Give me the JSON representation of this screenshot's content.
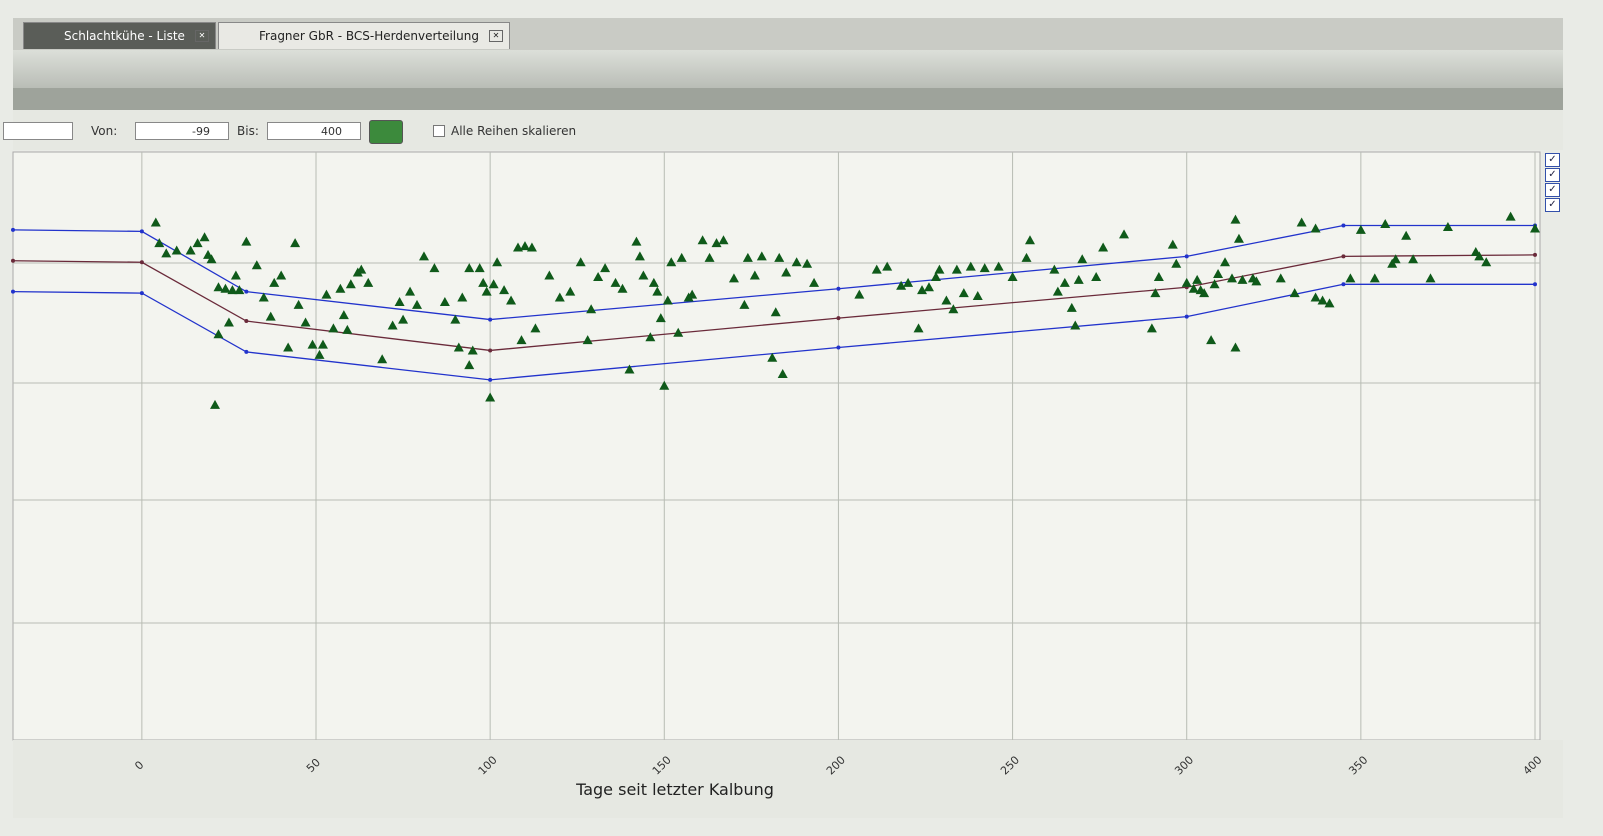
{
  "tabs": [
    {
      "label": "Schlachtkühe - Liste"
    },
    {
      "label": "Fragner GbR - BCS-Herdenverteilung"
    }
  ],
  "toolbar": {
    "from_label": "Von:",
    "from_value": -99,
    "to_label": "Bis:",
    "to_value": 400,
    "checkbox_label": "Alle Reihen skalieren"
  },
  "chart_data": {
    "type": "scatter",
    "xlabel": "Tage seit letzter Kalbung",
    "xlim": [
      -37,
      400
    ],
    "xticks": [
      0,
      50,
      100,
      150,
      200,
      250,
      300,
      350,
      400
    ],
    "ylim": [
      1,
      5
    ],
    "grid": true,
    "series": [
      {
        "type": "line",
        "color": "#2233cc",
        "x": [
          -37,
          0,
          30,
          100,
          200,
          300,
          345,
          400
        ],
        "values": [
          4.47,
          4.46,
          4.05,
          3.86,
          4.07,
          4.29,
          4.5,
          4.5
        ]
      },
      {
        "type": "line",
        "color": "#6a2a3a",
        "x": [
          -37,
          0,
          30,
          100,
          200,
          300,
          345,
          400
        ],
        "values": [
          4.26,
          4.25,
          3.85,
          3.65,
          3.87,
          4.08,
          4.29,
          4.3
        ]
      },
      {
        "type": "line",
        "color": "#2233cc",
        "x": [
          -37,
          0,
          30,
          100,
          200,
          300,
          345,
          400
        ],
        "values": [
          4.05,
          4.04,
          3.64,
          3.45,
          3.67,
          3.88,
          4.1,
          4.1
        ]
      },
      {
        "type": "scatter",
        "color": "#0f5a1a",
        "x": [
          4,
          5,
          7,
          10,
          14,
          16,
          18,
          19,
          20,
          22,
          24,
          21,
          22,
          25,
          26,
          27,
          28,
          30,
          33,
          35,
          37,
          38,
          40,
          42,
          44,
          45,
          47,
          49,
          51,
          52,
          53,
          55,
          57,
          58,
          59,
          60,
          62,
          63,
          65,
          69,
          72,
          74,
          75,
          77,
          79,
          81,
          84,
          87,
          90,
          91,
          92,
          94,
          95,
          94,
          97,
          98,
          99,
          100,
          101,
          102,
          104,
          106,
          108,
          110,
          112,
          109,
          113,
          117,
          120,
          123,
          126,
          128,
          129,
          131,
          133,
          136,
          138,
          140,
          142,
          143,
          144,
          146,
          147,
          148,
          149,
          150,
          151,
          152,
          154,
          155,
          157,
          158,
          161,
          163,
          165,
          167,
          170,
          173,
          174,
          176,
          178,
          181,
          182,
          183,
          185,
          184,
          188,
          191,
          193,
          206,
          211,
          214,
          218,
          220,
          223,
          224,
          226,
          228,
          229,
          231,
          233,
          234,
          236,
          238,
          240,
          242,
          246,
          250,
          254,
          255,
          262,
          263,
          265,
          267,
          268,
          269,
          270,
          274,
          276,
          282,
          290,
          291,
          292,
          296,
          297,
          300,
          302,
          303,
          304,
          305,
          308,
          309,
          307,
          311,
          313,
          314,
          315,
          316,
          314,
          319,
          320,
          327,
          331,
          333,
          337,
          337,
          339,
          341,
          347,
          350,
          354,
          357,
          359,
          360,
          363,
          365,
          370,
          375,
          383,
          384,
          386,
          393,
          400
        ],
        "values": [
          4.52,
          4.38,
          4.31,
          4.33,
          4.33,
          4.38,
          4.42,
          4.3,
          4.27,
          4.08,
          4.07,
          3.28,
          3.76,
          3.84,
          4.06,
          4.16,
          4.06,
          4.39,
          4.23,
          4.01,
          3.88,
          4.11,
          4.16,
          3.67,
          4.38,
          3.96,
          3.84,
          3.69,
          3.62,
          3.69,
          4.03,
          3.8,
          4.07,
          3.89,
          3.79,
          4.1,
          4.18,
          4.2,
          4.11,
          3.59,
          3.82,
          3.98,
          3.86,
          4.05,
          3.96,
          4.29,
          4.21,
          3.98,
          3.86,
          3.67,
          4.01,
          3.55,
          3.65,
          4.21,
          4.21,
          4.11,
          4.05,
          3.33,
          4.1,
          4.25,
          4.06,
          3.99,
          4.35,
          4.36,
          4.35,
          3.72,
          3.8,
          4.16,
          4.01,
          4.05,
          4.25,
          3.72,
          3.93,
          4.15,
          4.21,
          4.11,
          4.07,
          3.52,
          4.39,
          4.29,
          4.16,
          3.74,
          4.11,
          4.05,
          3.87,
          3.41,
          3.99,
          4.25,
          3.77,
          4.28,
          4.01,
          4.03,
          4.4,
          4.28,
          4.38,
          4.4,
          4.14,
          3.96,
          4.28,
          4.16,
          4.29,
          3.6,
          3.91,
          4.28,
          4.18,
          3.49,
          4.25,
          4.24,
          4.11,
          4.03,
          4.2,
          4.22,
          4.09,
          4.11,
          3.8,
          4.06,
          4.08,
          4.15,
          4.2,
          3.99,
          3.93,
          4.2,
          4.04,
          4.22,
          4.02,
          4.21,
          4.22,
          4.15,
          4.28,
          4.4,
          4.2,
          4.05,
          4.11,
          3.94,
          3.82,
          4.13,
          4.27,
          4.15,
          4.35,
          4.44,
          3.8,
          4.04,
          4.15,
          4.37,
          4.24,
          4.11,
          4.07,
          4.13,
          4.06,
          4.04,
          4.1,
          4.17,
          3.72,
          4.25,
          4.14,
          4.54,
          4.41,
          4.13,
          3.67,
          4.14,
          4.12,
          4.14,
          4.04,
          4.52,
          4.48,
          4.01,
          3.99,
          3.97,
          4.14,
          4.47,
          4.14,
          4.51,
          4.24,
          4.27,
          4.43,
          4.27,
          4.14,
          4.49,
          4.32,
          4.29,
          4.25,
          4.56,
          4.48
        ]
      }
    ]
  }
}
